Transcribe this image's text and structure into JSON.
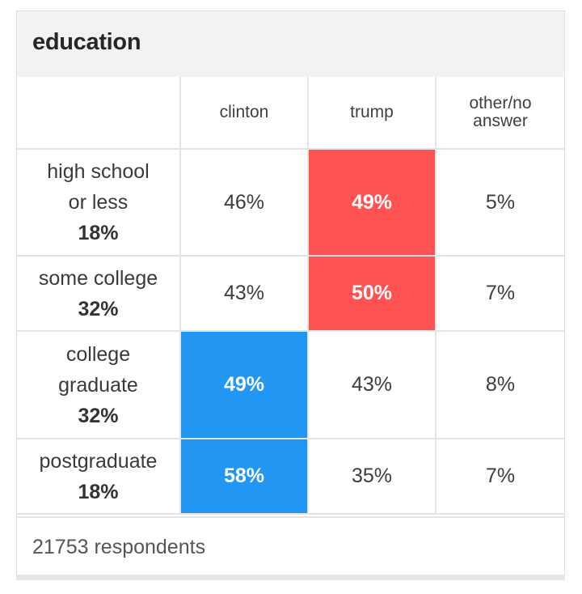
{
  "title": "education",
  "colors": {
    "clinton": "#2196f3",
    "trump": "#ff5252"
  },
  "chart_data": {
    "type": "table",
    "title": "education",
    "columns": [
      "clinton",
      "trump",
      "other/no answer"
    ],
    "rows": [
      {
        "label_lines": [
          "high school",
          "or less"
        ],
        "share": "18%",
        "values": [
          "46%",
          "49%",
          "5%"
        ],
        "winner": 1
      },
      {
        "label_lines": [
          "some college"
        ],
        "share": "32%",
        "values": [
          "43%",
          "50%",
          "7%"
        ],
        "winner": 1
      },
      {
        "label_lines": [
          "college",
          "graduate"
        ],
        "share": "32%",
        "values": [
          "49%",
          "43%",
          "8%"
        ],
        "winner": 0
      },
      {
        "label_lines": [
          "postgraduate"
        ],
        "share": "18%",
        "values": [
          "58%",
          "35%",
          "7%"
        ],
        "winner": 0
      }
    ]
  },
  "column_headers": {
    "clinton": "clinton",
    "trump": "trump",
    "other_line1": "other/no",
    "other_line2": "answer"
  },
  "footer": "21753 respondents"
}
